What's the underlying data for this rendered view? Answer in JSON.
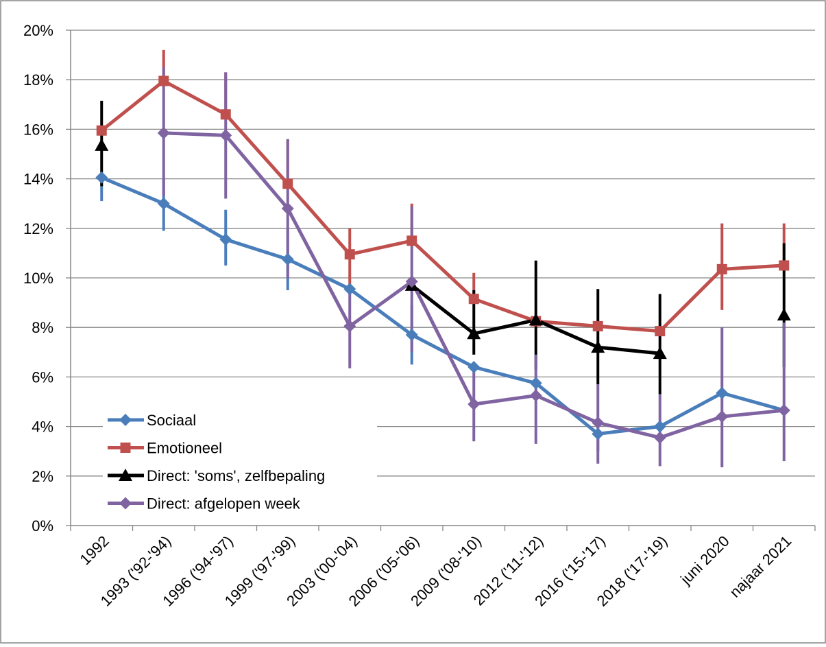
{
  "chart_data": {
    "type": "line",
    "categories": [
      "1992",
      "1993 ('92-'94)",
      "1996 ('94-'97)",
      "1999 ('97-'99)",
      "2003 ('00-'04)",
      "2006 ('05-'06)",
      "2009 ('08-'10)",
      "2012 ('11-'12)",
      "2016 ('15-'17)",
      "2018 ('17-'19)",
      "juni 2020",
      "najaar 2021"
    ],
    "ylim": [
      0,
      20
    ],
    "yticks": [
      "0%",
      "2%",
      "4%",
      "6%",
      "8%",
      "10%",
      "12%",
      "14%",
      "16%",
      "18%",
      "20%"
    ],
    "grid": true,
    "legend_position": "bottom-left",
    "series": [
      {
        "name": "Sociaal",
        "color": "#4a7ebb",
        "marker": "diamond",
        "values": [
          14.05,
          13.0,
          11.55,
          10.75,
          9.55,
          7.7,
          6.4,
          5.75,
          3.7,
          4.0,
          5.35,
          4.65
        ],
        "err_low": [
          13.1,
          11.9,
          10.5,
          9.5,
          null,
          6.5,
          null,
          null,
          3.0,
          null,
          null,
          null
        ],
        "err_high": [
          null,
          14.0,
          12.75,
          12.0,
          null,
          8.9,
          null,
          null,
          null,
          null,
          null,
          null
        ]
      },
      {
        "name": "Emotioneel",
        "color": "#c0504d",
        "marker": "square",
        "values": [
          15.95,
          17.95,
          16.6,
          13.8,
          10.95,
          11.5,
          9.15,
          8.25,
          8.05,
          7.85,
          10.35,
          10.5
        ],
        "err_low": [
          null,
          null,
          null,
          null,
          9.5,
          null,
          null,
          null,
          null,
          null,
          8.7,
          null
        ],
        "err_high": [
          null,
          19.2,
          18.3,
          15.6,
          12.0,
          13.0,
          10.2,
          null,
          null,
          null,
          12.2,
          12.2
        ]
      },
      {
        "name": "Direct: 'soms', zelfbepaling",
        "color": "#000000",
        "marker": "triangle",
        "values": [
          15.35,
          null,
          null,
          null,
          null,
          9.7,
          7.75,
          8.3,
          7.2,
          6.95,
          null,
          8.5
        ],
        "err_low": [
          13.7,
          null,
          null,
          null,
          null,
          null,
          6.9,
          6.3,
          5.7,
          5.3,
          null,
          6.4
        ],
        "err_high": [
          17.15,
          null,
          null,
          null,
          null,
          null,
          9.5,
          10.7,
          9.55,
          9.35,
          null,
          11.4
        ]
      },
      {
        "name": "Direct: afgelopen week",
        "color": "#8064a2",
        "marker": "diamond",
        "values": [
          null,
          15.85,
          15.75,
          12.8,
          8.05,
          9.85,
          4.9,
          5.25,
          4.15,
          3.55,
          4.4,
          4.65
        ],
        "err_low": [
          null,
          13.3,
          13.2,
          10.0,
          6.35,
          7.0,
          3.4,
          3.3,
          2.5,
          2.4,
          2.35,
          2.6
        ],
        "err_high": [
          null,
          18.5,
          18.3,
          15.6,
          9.7,
          12.9,
          6.4,
          6.9,
          5.7,
          5.3,
          8.0,
          8.2
        ]
      }
    ]
  }
}
